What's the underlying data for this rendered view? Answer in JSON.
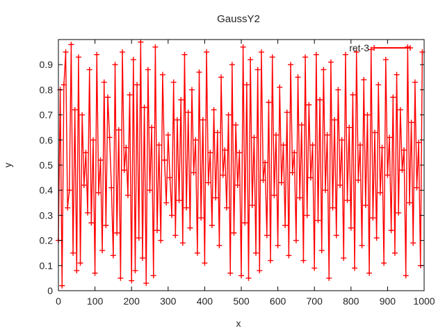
{
  "chart_data": {
    "type": "line",
    "title": "GaussY2",
    "xlabel": "x",
    "ylabel": "y",
    "xlim": [
      0,
      1000
    ],
    "ylim": [
      0,
      1.0
    ],
    "xticks": [
      "0",
      "100",
      "200",
      "300",
      "400",
      "500",
      "600",
      "700",
      "800",
      "900",
      "1000"
    ],
    "yticks": [
      "0",
      "0.1",
      "0.2",
      "0.3",
      "0.4",
      "0.5",
      "0.6",
      "0.7",
      "0.8",
      "0.9"
    ],
    "grid": false,
    "legend_position": "top-right",
    "markers": "plus",
    "series": [
      {
        "name": "ret-3",
        "color": "#ff0000",
        "x_start": 0,
        "x_step": 5,
        "y": [
          0.2,
          0.8,
          0.02,
          0.82,
          0.95,
          0.33,
          0.4,
          0.98,
          0.15,
          0.72,
          0.08,
          0.93,
          0.11,
          0.7,
          0.42,
          0.55,
          0.31,
          0.88,
          0.27,
          0.6,
          0.07,
          0.94,
          0.39,
          0.52,
          0.16,
          0.83,
          0.26,
          0.77,
          0.61,
          0.41,
          0.14,
          0.9,
          0.23,
          0.64,
          0.05,
          0.95,
          0.48,
          0.57,
          0.38,
          0.78,
          0.04,
          0.92,
          0.08,
          0.82,
          0.21,
          0.99,
          0.13,
          0.73,
          0.03,
          0.88,
          0.4,
          0.65,
          0.06,
          0.97,
          0.24,
          0.58,
          0.2,
          0.86,
          0.52,
          0.35,
          0.62,
          0.45,
          0.3,
          0.83,
          0.22,
          0.68,
          0.36,
          0.76,
          0.19,
          0.94,
          0.33,
          0.71,
          0.25,
          0.8,
          0.47,
          0.6,
          0.15,
          0.87,
          0.29,
          0.68,
          0.11,
          0.95,
          0.43,
          0.55,
          0.26,
          0.72,
          0.37,
          0.63,
          0.18,
          0.85,
          0.46,
          0.56,
          0.33,
          0.7,
          0.07,
          0.9,
          0.23,
          0.66,
          0.42,
          0.55,
          0.06,
          0.97,
          0.27,
          0.82,
          0.05,
          0.92,
          0.34,
          0.61,
          0.15,
          0.88,
          0.08,
          0.95,
          0.44,
          0.51,
          0.22,
          0.75,
          0.12,
          0.93,
          0.38,
          0.62,
          0.18,
          0.81,
          0.43,
          0.58,
          0.26,
          0.71,
          0.14,
          0.9,
          0.47,
          0.55,
          0.2,
          0.85,
          0.37,
          0.66,
          0.12,
          0.93,
          0.3,
          0.74,
          0.45,
          0.58,
          0.09,
          0.94,
          0.28,
          0.76,
          0.16,
          0.88,
          0.4,
          0.62,
          0.05,
          0.91,
          0.33,
          0.68,
          0.22,
          0.8,
          0.42,
          0.6,
          0.13,
          0.94,
          0.36,
          0.65,
          0.25,
          0.78,
          0.09,
          0.95,
          0.44,
          0.58,
          0.18,
          0.84,
          0.34,
          0.7,
          0.07,
          0.96,
          0.29,
          0.63,
          0.21,
          0.82,
          0.39,
          0.57,
          0.11,
          0.92,
          0.46,
          0.61,
          0.24,
          0.77,
          0.15,
          0.86,
          0.31,
          0.72,
          0.48,
          0.56,
          0.06,
          0.97,
          0.35,
          0.67,
          0.19,
          0.83,
          0.41,
          0.59,
          0.1,
          0.95
        ]
      }
    ]
  }
}
